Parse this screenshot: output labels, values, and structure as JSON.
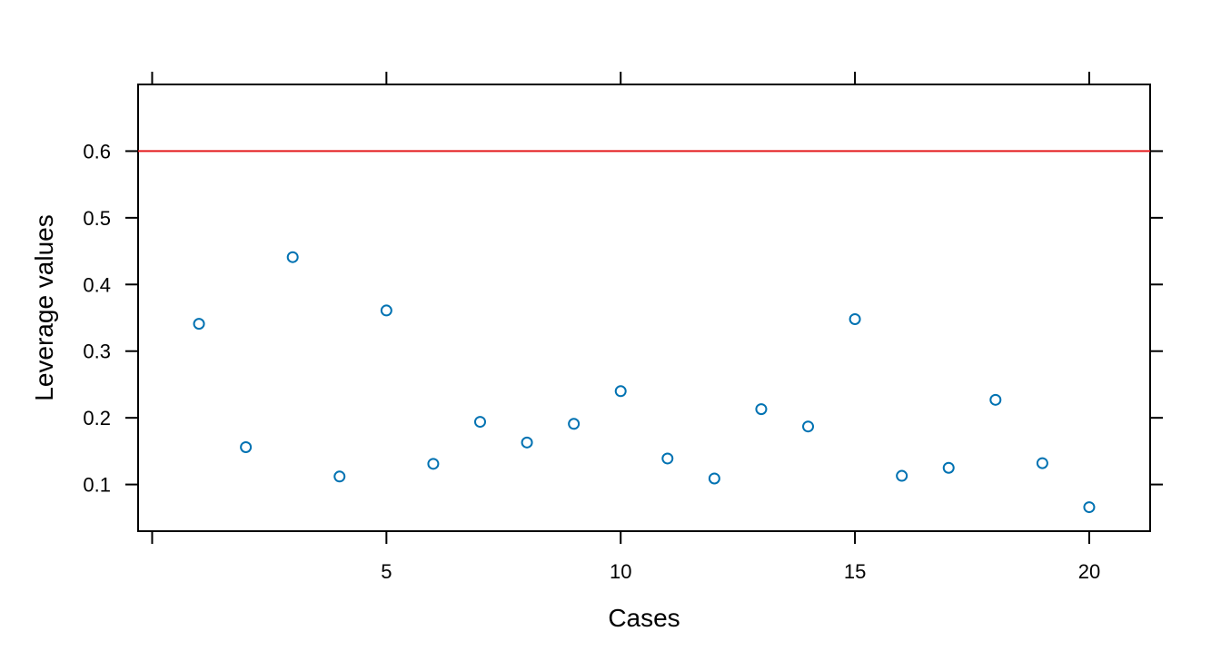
{
  "chart_data": {
    "type": "scatter",
    "title": "",
    "xlabel": "Cases",
    "ylabel": "Leverage values",
    "xlim": [
      -0.3,
      21.3
    ],
    "ylim": [
      0.03,
      0.7
    ],
    "xticks": [
      5,
      10,
      15,
      20
    ],
    "xticks_unlabeled": [
      0
    ],
    "yticks": [
      0.1,
      0.2,
      0.3,
      0.4,
      0.5,
      0.6
    ],
    "ytick_labels": [
      "0.1",
      "0.2",
      "0.3",
      "0.4",
      "0.5",
      "0.6"
    ],
    "grid": false,
    "legend": "none",
    "series": [
      {
        "x": [
          1,
          2,
          3,
          4,
          5,
          6,
          7,
          8,
          9,
          10,
          11,
          12,
          13,
          14,
          15,
          16,
          17,
          18,
          19,
          20
        ],
        "y": [
          0.341,
          0.156,
          0.441,
          0.112,
          0.361,
          0.131,
          0.194,
          0.163,
          0.191,
          0.24,
          0.139,
          0.109,
          0.213,
          0.187,
          0.348,
          0.113,
          0.125,
          0.227,
          0.132,
          0.066
        ],
        "color": "#0072B2",
        "marker": "open-circle"
      }
    ],
    "reference_lines": [
      {
        "y": 0.6,
        "color": "#E41A1C"
      }
    ]
  }
}
